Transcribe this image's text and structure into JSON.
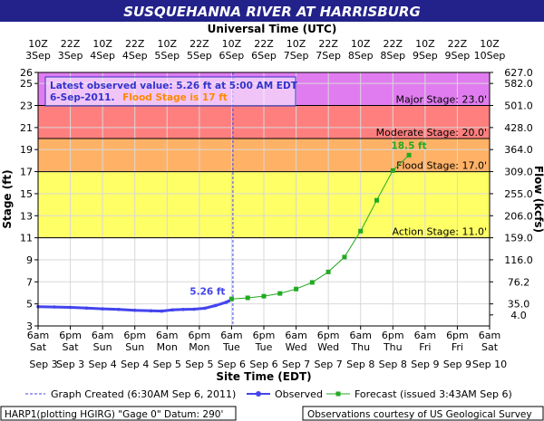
{
  "chart_data": {
    "type": "line",
    "title": "SUSQUEHANNA RIVER AT HARRISBURG",
    "top_axis_title": "Universal Time (UTC)",
    "xlabel": "Site Time (EDT)",
    "ylabel": "Stage (ft)",
    "y2label": "Flow (kcfs)",
    "ylim": [
      3,
      26
    ],
    "xlim_hours": [
      0,
      168
    ],
    "x_origin": "6am Sat Sep 3",
    "y_ticks": [
      3,
      5,
      7,
      9,
      11,
      13,
      15,
      17,
      19,
      21,
      23,
      25,
      26
    ],
    "y2_ticks": [
      {
        "stage": 4,
        "label": "4.0"
      },
      {
        "stage": 5,
        "label": "35.0"
      },
      {
        "stage": 7,
        "label": "76.2"
      },
      {
        "stage": 9,
        "label": "116.0"
      },
      {
        "stage": 11,
        "label": "159.0"
      },
      {
        "stage": 13,
        "label": "206.0"
      },
      {
        "stage": 15,
        "label": "255.0"
      },
      {
        "stage": 17,
        "label": "309.0"
      },
      {
        "stage": 19,
        "label": "364.0"
      },
      {
        "stage": 21,
        "label": "428.0"
      },
      {
        "stage": 23,
        "label": "501.0"
      },
      {
        "stage": 25,
        "label": "582.0"
      },
      {
        "stage": 26,
        "label": "627.0"
      }
    ],
    "bottom_ticks": [
      {
        "h": 0,
        "time": "6am",
        "day": "Sat"
      },
      {
        "h": 12,
        "time": "6pm",
        "day": "Sat"
      },
      {
        "h": 24,
        "time": "6am",
        "day": "Sun"
      },
      {
        "h": 36,
        "time": "6pm",
        "day": "Sun"
      },
      {
        "h": 48,
        "time": "6am",
        "day": "Mon"
      },
      {
        "h": 60,
        "time": "6pm",
        "day": "Mon"
      },
      {
        "h": 72,
        "time": "6am",
        "day": "Tue"
      },
      {
        "h": 84,
        "time": "6pm",
        "day": "Tue"
      },
      {
        "h": 96,
        "time": "6am",
        "day": "Wed"
      },
      {
        "h": 108,
        "time": "6pm",
        "day": "Wed"
      },
      {
        "h": 120,
        "time": "6am",
        "day": "Thu"
      },
      {
        "h": 132,
        "time": "6pm",
        "day": "Thu"
      },
      {
        "h": 144,
        "time": "6am",
        "day": "Fri"
      },
      {
        "h": 156,
        "time": "6pm",
        "day": "Fri"
      },
      {
        "h": 168,
        "time": "6am",
        "day": "Sat"
      }
    ],
    "bottom_dates": [
      {
        "h": 6,
        "label": "Sep 3"
      },
      {
        "h": 30,
        "label": "Sep 4"
      },
      {
        "h": 54,
        "label": "Sep 5"
      },
      {
        "h": 78,
        "label": "Sep 6"
      },
      {
        "h": 102,
        "label": "Sep 7"
      },
      {
        "h": 126,
        "label": "Sep 8"
      },
      {
        "h": 150,
        "label": "Sep 9"
      },
      {
        "h": 162,
        "label": "Sep 10"
      }
    ],
    "bottom_date_positions": [
      {
        "h": 0,
        "label": "Sep 3"
      },
      {
        "h": 12,
        "label": "Sep 3"
      },
      {
        "h": 24,
        "label": "Sep 4"
      },
      {
        "h": 36,
        "label": "Sep 4"
      },
      {
        "h": 48,
        "label": "Sep 5"
      },
      {
        "h": 60,
        "label": "Sep 5"
      },
      {
        "h": 72,
        "label": "Sep 6"
      },
      {
        "h": 84,
        "label": "Sep 6"
      },
      {
        "h": 96,
        "label": "Sep 7"
      },
      {
        "h": 108,
        "label": "Sep 7"
      },
      {
        "h": 120,
        "label": "Sep 8"
      },
      {
        "h": 132,
        "label": "Sep 8"
      },
      {
        "h": 144,
        "label": "Sep 9"
      },
      {
        "h": 156,
        "label": "Sep 9"
      },
      {
        "h": 168,
        "label": "Sep 10"
      }
    ],
    "top_ticks": [
      {
        "h": 4,
        "time": "10Z",
        "date": "3Sep"
      },
      {
        "h": 16,
        "time": "22Z",
        "date": "3Sep"
      },
      {
        "h": 28,
        "time": "10Z",
        "date": "4Sep"
      },
      {
        "h": 40,
        "time": "22Z",
        "date": "4Sep"
      },
      {
        "h": 52,
        "time": "10Z",
        "date": "5Sep"
      },
      {
        "h": 64,
        "time": "22Z",
        "date": "5Sep"
      },
      {
        "h": 76,
        "time": "10Z",
        "date": "6Sep"
      },
      {
        "h": 88,
        "time": "22Z",
        "date": "6Sep"
      },
      {
        "h": 100,
        "time": "10Z",
        "date": "7Sep"
      },
      {
        "h": 112,
        "time": "22Z",
        "date": "7Sep"
      },
      {
        "h": 124,
        "time": "10Z",
        "date": "8Sep"
      },
      {
        "h": 136,
        "time": "22Z",
        "date": "8Sep"
      },
      {
        "h": 148,
        "time": "10Z",
        "date": "9Sep"
      },
      {
        "h": 160,
        "time": "22Z",
        "date": "9Sep"
      },
      {
        "h": 172,
        "time": "10Z",
        "date": "10Sep"
      }
    ],
    "flood_stages": [
      {
        "name": "Major Stage: 23.0'",
        "stage": 23.0,
        "band_top": 26,
        "color": "#e07cf0"
      },
      {
        "name": "Moderate Stage: 20.0'",
        "stage": 20.0,
        "band_top": 23,
        "color": "#ff7f7f"
      },
      {
        "name": "Flood Stage: 17.0'",
        "stage": 17.0,
        "band_top": 20,
        "color": "#ffb266"
      },
      {
        "name": "Action Stage: 11.0'",
        "stage": 11.0,
        "band_top": 17,
        "color": "#ffff66"
      }
    ],
    "graph_created_h": 72.5,
    "observed": {
      "name": "Observed",
      "color": "#4444ee",
      "points": [
        [
          0,
          4.75
        ],
        [
          6,
          4.72
        ],
        [
          12,
          4.68
        ],
        [
          18,
          4.62
        ],
        [
          24,
          4.55
        ],
        [
          30,
          4.5
        ],
        [
          36,
          4.42
        ],
        [
          42,
          4.37
        ],
        [
          46,
          4.35
        ],
        [
          50,
          4.45
        ],
        [
          54,
          4.5
        ],
        [
          58,
          4.52
        ],
        [
          62,
          4.6
        ],
        [
          66,
          4.85
        ],
        [
          70,
          5.15
        ],
        [
          71,
          5.26
        ]
      ]
    },
    "forecast": {
      "name": "Forecast (issued 3:43AM Sep 6)",
      "color": "#22aa22",
      "points": [
        [
          72,
          5.45
        ],
        [
          78,
          5.55
        ],
        [
          84,
          5.7
        ],
        [
          90,
          5.95
        ],
        [
          96,
          6.35
        ],
        [
          102,
          6.95
        ],
        [
          108,
          7.9
        ],
        [
          114,
          9.25
        ],
        [
          120,
          11.6
        ],
        [
          126,
          14.4
        ],
        [
          132,
          17.1
        ],
        [
          138,
          18.5
        ]
      ]
    },
    "latest_label": "5.26 ft",
    "peak_label": "18.5 ft",
    "info_box": {
      "line1": "Latest observed value: 5.26 ft at 5:00 AM EDT",
      "line2_date": "6-Sep-2011.",
      "line2_flood": "Flood Stage is 17 ft"
    },
    "legend": {
      "graph_created": "Graph Created (6:30AM Sep 6, 2011)",
      "observed": "Observed",
      "forecast": "Forecast (issued 3:43AM Sep 6)"
    },
    "footer": {
      "left": "HARP1(plotting HGIRG) \"Gage 0\" Datum: 290'",
      "right": "Observations courtesy of US Geological Survey"
    },
    "colors": {
      "title_bg": "#22228a",
      "title_text": "#ffffff",
      "observed": "#4444ee",
      "forecast": "#22aa22",
      "flood_text": "#ff8800",
      "info_text": "#3333cc"
    }
  }
}
